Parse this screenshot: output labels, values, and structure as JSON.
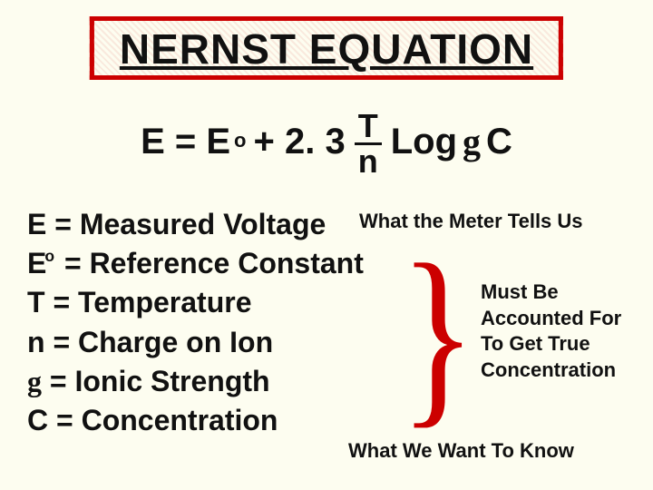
{
  "title": "NERNST EQUATION",
  "equation": {
    "lhs": "E = E",
    "superscript_o": "o",
    "plus_const": " + 2. 3 ",
    "frac_num": "T",
    "frac_den": "n",
    "log_part": " Log ",
    "gamma": "g",
    "c_part": " C"
  },
  "defs": {
    "e": "E = Measured Voltage",
    "eo_pre": "E",
    "eo_sup": "o",
    "eo_post": " = Reference Constant",
    "t": "T = Temperature",
    "n": "n = Charge on Ion",
    "gamma_sym": "g",
    "gamma_post": " = Ionic Strength",
    "c": "C = Concentration"
  },
  "notes": {
    "meter": "What the Meter Tells Us",
    "must1": "Must Be",
    "must2": "Accounted For",
    "must3": "To Get True",
    "must4": "Concentration",
    "want": "What We Want To Know"
  },
  "colors": {
    "background": "#fdfdf0",
    "title_border": "#cc0000",
    "text": "#111111",
    "brace": "#cc0000"
  }
}
